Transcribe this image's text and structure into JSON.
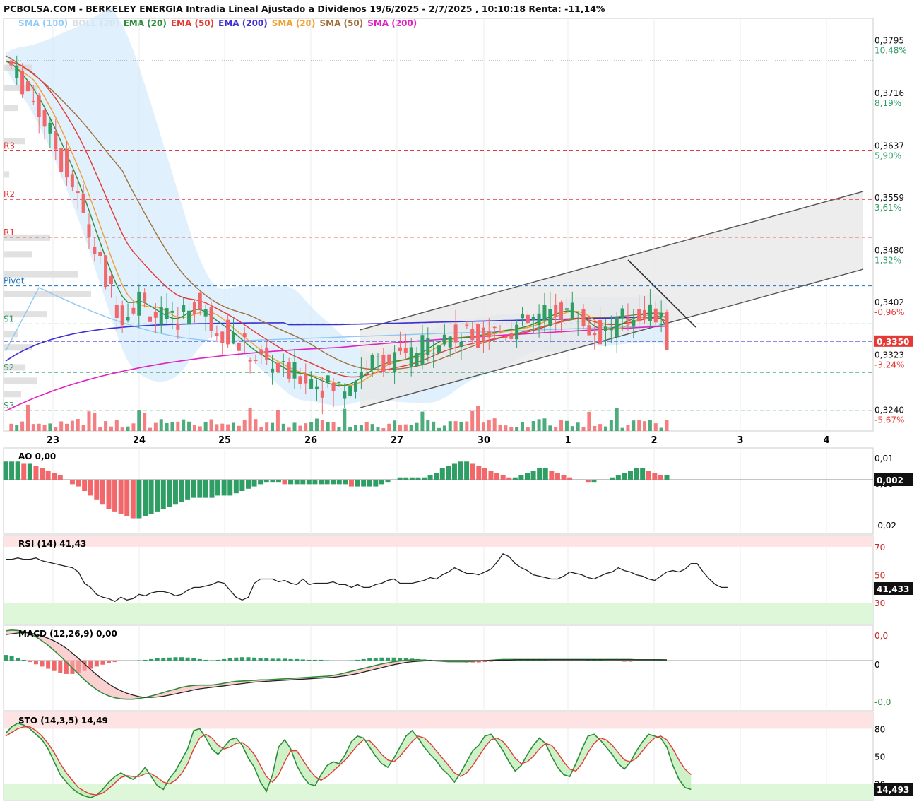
{
  "header": {
    "title": "PCBOLSA.COM - BERKELEY ENERGIA Intradia Lineal Ajustado a Dividenos 19/6/2025 - 2/7/2025 , 10:10:18 Renta: -11,14%"
  },
  "legend": [
    {
      "label": "SMA (100)",
      "color": "#90caf9"
    },
    {
      "label": "BOLL (20)",
      "color": "#dddddd"
    },
    {
      "label": "EMA (20)",
      "color": "#2e8b3a"
    },
    {
      "label": "EMA (50)",
      "color": "#e53935"
    },
    {
      "label": "EMA (200)",
      "color": "#3d2fd6"
    },
    {
      "label": "SMA (20)",
      "color": "#f0a030"
    },
    {
      "label": "SMA (50)",
      "color": "#a0703c"
    },
    {
      "label": "SMA (200)",
      "color": "#e020c0"
    }
  ],
  "colors": {
    "up": "#2e9e64",
    "down": "#f2676a",
    "channel": "#555555"
  },
  "chart_data": [
    {
      "type": "candlestick",
      "panel": "price",
      "x_labels": [
        "23",
        "24",
        "25",
        "26",
        "27",
        "30",
        "1",
        "2",
        "3",
        "4"
      ],
      "y_ticks": [
        {
          "value": 0.3795,
          "label": "0,3795",
          "pct": "10,48%",
          "pct_color": "#2e9e64"
        },
        {
          "value": 0.3716,
          "label": "0,3716",
          "pct": "8,19%",
          "pct_color": "#2e9e64"
        },
        {
          "value": 0.3637,
          "label": "0,3637",
          "pct": "5,90%",
          "pct_color": "#2e9e64"
        },
        {
          "value": 0.3559,
          "label": "0,3559",
          "pct": "3,61%",
          "pct_color": "#2e9e64"
        },
        {
          "value": 0.348,
          "label": "0,3480",
          "pct": "1,32%",
          "pct_color": "#2e9e64"
        },
        {
          "value": 0.3402,
          "label": "0,3402",
          "pct": "-0,96%",
          "pct_color": "#e53935"
        },
        {
          "value": 0.3323,
          "label": "0,3323",
          "pct": "-3,24%",
          "pct_color": "#e53935"
        },
        {
          "value": 0.324,
          "label": "0,3240",
          "pct": "-5,67%",
          "pct_color": "#e53935"
        }
      ],
      "ylim": [
        0.3215,
        0.3835
      ],
      "last_price": {
        "value": 0.335,
        "label": "0,3350"
      },
      "reference_price": 0.3771,
      "pivot_levels": [
        {
          "name": "R3",
          "value": 0.3636,
          "color": "#e53935"
        },
        {
          "name": "R2",
          "value": 0.3563,
          "color": "#e53935"
        },
        {
          "name": "R1",
          "value": 0.3506,
          "color": "#e53935"
        },
        {
          "name": "Pivot",
          "value": 0.3433,
          "color": "#1e73be"
        },
        {
          "name": "S1",
          "value": 0.3376,
          "color": "#2e9e64"
        },
        {
          "name": "S2",
          "value": 0.3303,
          "color": "#2e9e64"
        },
        {
          "name": "S3",
          "value": 0.3246,
          "color": "#2e9e64"
        }
      ],
      "series_close": [
        0.3771,
        0.3762,
        0.3749,
        0.3738,
        0.3726,
        0.3712,
        0.3696,
        0.3679,
        0.3661,
        0.3642,
        0.3621,
        0.3603,
        0.3584,
        0.3562,
        0.3537,
        0.3511,
        0.3486,
        0.3463,
        0.3441,
        0.3421,
        0.3404,
        0.3392,
        0.3395,
        0.3408,
        0.3414,
        0.3404,
        0.3396,
        0.339,
        0.3385,
        0.3381,
        0.3379,
        0.3384,
        0.3393,
        0.3401,
        0.3404,
        0.3398,
        0.3388,
        0.3378,
        0.3371,
        0.3366,
        0.3361,
        0.3354,
        0.3346,
        0.3338,
        0.3331,
        0.3326,
        0.3322,
        0.3318,
        0.3313,
        0.3308,
        0.3303,
        0.33,
        0.3299,
        0.3299,
        0.3298,
        0.3294,
        0.3289,
        0.3285,
        0.3282,
        0.328,
        0.3281,
        0.3284,
        0.3289,
        0.3296,
        0.3303,
        0.331,
        0.3315,
        0.3319,
        0.3321,
        0.3322,
        0.3322,
        0.3323,
        0.3325,
        0.3329,
        0.3334,
        0.334,
        0.3346,
        0.3352,
        0.3356,
        0.3357,
        0.3357,
        0.3356,
        0.3356,
        0.3357,
        0.3358,
        0.336,
        0.3362,
        0.3364,
        0.3366,
        0.3367,
        0.3368,
        0.3369,
        0.3371,
        0.3373,
        0.3376,
        0.338,
        0.3385,
        0.3389,
        0.3393,
        0.3396,
        0.3398,
        0.3398,
        0.3395,
        0.3388,
        0.3378,
        0.3368,
        0.3363,
        0.3362,
        0.3366,
        0.3372,
        0.3377,
        0.3382,
        0.3386,
        0.339,
        0.3394,
        0.3396,
        0.3394,
        0.3388,
        0.3375,
        0.335
      ]
    },
    {
      "type": "bar",
      "panel": "AO",
      "title": "AO  0,00",
      "y_ticks": [
        "0,01",
        "0,00",
        "-0,02"
      ],
      "last": "0,002",
      "ylim": [
        -0.024,
        0.014
      ],
      "values": [
        0.008,
        0.008,
        0.008,
        0.007,
        0.007,
        0.006,
        0.005,
        0.004,
        0.003,
        0.002,
        0.0,
        -0.002,
        -0.003,
        -0.005,
        -0.007,
        -0.009,
        -0.011,
        -0.013,
        -0.014,
        -0.015,
        -0.016,
        -0.017,
        -0.017,
        -0.016,
        -0.015,
        -0.014,
        -0.013,
        -0.012,
        -0.011,
        -0.01,
        -0.009,
        -0.008,
        -0.008,
        -0.008,
        -0.008,
        -0.007,
        -0.007,
        -0.007,
        -0.006,
        -0.005,
        -0.004,
        -0.003,
        -0.002,
        -0.001,
        -0.001,
        -0.001,
        -0.002,
        -0.002,
        -0.002,
        -0.002,
        -0.002,
        -0.002,
        -0.002,
        -0.002,
        -0.002,
        -0.002,
        -0.002,
        -0.003,
        -0.003,
        -0.003,
        -0.003,
        -0.003,
        -0.002,
        -0.001,
        0.0,
        0.001,
        0.001,
        0.001,
        0.001,
        0.001,
        0.002,
        0.003,
        0.005,
        0.006,
        0.007,
        0.008,
        0.008,
        0.007,
        0.006,
        0.005,
        0.004,
        0.003,
        0.002,
        0.001,
        0.001,
        0.002,
        0.003,
        0.004,
        0.005,
        0.005,
        0.004,
        0.003,
        0.002,
        0.001,
        0.0,
        0.0,
        -0.001,
        -0.001,
        0.0,
        0.0,
        0.001,
        0.002,
        0.003,
        0.004,
        0.005,
        0.005,
        0.004,
        0.003,
        0.002,
        0.002
      ]
    },
    {
      "type": "line",
      "panel": "RSI",
      "title": "RSI (14)  41,43",
      "y_ticks": [
        "70",
        "50",
        "30"
      ],
      "last": "41,433",
      "ylim": [
        15,
        78
      ],
      "values": [
        61,
        61,
        62,
        61,
        61,
        62,
        60,
        59,
        58,
        57,
        56,
        55,
        52,
        44,
        41,
        36,
        34,
        33,
        31,
        34,
        32,
        33,
        36,
        35,
        37,
        38,
        38,
        37,
        35,
        36,
        39,
        41,
        41,
        42,
        43,
        45,
        44,
        39,
        34,
        32,
        34,
        44,
        47,
        47,
        47,
        45,
        46,
        44,
        43,
        47,
        43,
        44,
        44,
        44,
        45,
        43,
        43,
        41,
        43,
        41,
        41,
        43,
        44,
        46,
        47,
        44,
        44,
        44,
        45,
        46,
        48,
        47,
        50,
        52,
        55,
        53,
        51,
        51,
        50,
        52,
        54,
        59,
        65,
        63,
        58,
        55,
        53,
        50,
        49,
        48,
        47,
        47,
        49,
        52,
        51,
        50,
        48,
        47,
        49,
        51,
        52,
        55,
        53,
        52,
        50,
        49,
        47,
        46,
        49,
        52,
        53,
        52,
        54,
        58,
        58,
        52,
        47,
        43,
        41,
        41
      ]
    },
    {
      "type": "bar+line",
      "panel": "MACD",
      "title": "MACD (12,26,9)  0,00",
      "y_ticks": [
        "0,0",
        "0",
        "-0,0"
      ],
      "ylim": [
        -0.0135,
        0.0095
      ],
      "hist": [
        0.0015,
        0.0012,
        0.0006,
        0.0002,
        -0.0004,
        -0.001,
        -0.0016,
        -0.0022,
        -0.0028,
        -0.0033,
        -0.0036,
        -0.0036,
        -0.0033,
        -0.0028,
        -0.0022,
        -0.0016,
        -0.0011,
        -0.0007,
        -0.0004,
        -0.0002,
        -0.0001,
        0.0,
        0.0001,
        0.0002,
        0.0004,
        0.0006,
        0.0007,
        0.0008,
        0.0009,
        0.0009,
        0.0008,
        0.0006,
        0.0004,
        0.0002,
        0.0001,
        0.0002,
        0.0004,
        0.0007,
        0.0008,
        0.0009,
        0.0009,
        0.0008,
        0.0007,
        0.0006,
        0.0005,
        0.0005,
        0.0005,
        0.0004,
        0.0004,
        0.0003,
        0.0002,
        0.0002,
        0.0002,
        0.0001,
        0.0,
        -0.0001,
        0.0,
        0.0001,
        0.0002,
        0.0004,
        0.0006,
        0.0007,
        0.0008,
        0.0008,
        0.0008,
        0.0007,
        0.0006,
        0.0005,
        0.0004,
        0.0003,
        0.0002,
        0.0001,
        -0.0001,
        -0.0002,
        -0.0003,
        -0.0004,
        -0.0005,
        -0.0005,
        -0.0005,
        -0.0004,
        -0.0003,
        -0.0002,
        -0.0001,
        0.0,
        0.0001,
        0.0001,
        0.0002,
        0.0002,
        0.0002,
        0.0001,
        0.0,
        -0.0001,
        -0.0002,
        -0.0002,
        -0.0001,
        0.0,
        0.0001,
        0.0001,
        0.0001,
        0.0,
        -0.0001,
        -0.0002,
        -0.0003,
        -0.0003,
        -0.0002,
        -0.0001,
        0.0,
        0.0001,
        0.0001,
        -0.0002
      ],
      "macd": [
        0.008,
        0.0082,
        0.0081,
        0.0078,
        0.0072,
        0.0064,
        0.0053,
        0.0041,
        0.0027,
        0.0012,
        -0.0004,
        -0.002,
        -0.0036,
        -0.0052,
        -0.0066,
        -0.0078,
        -0.0088,
        -0.0095,
        -0.01,
        -0.0103,
        -0.0104,
        -0.0104,
        -0.0102,
        -0.0099,
        -0.0095,
        -0.0091,
        -0.0086,
        -0.0081,
        -0.0077,
        -0.0072,
        -0.0069,
        -0.0067,
        -0.0066,
        -0.0066,
        -0.0066,
        -0.0064,
        -0.0061,
        -0.0058,
        -0.0056,
        -0.0055,
        -0.0054,
        -0.0053,
        -0.0052,
        -0.0052,
        -0.0051,
        -0.005,
        -0.0049,
        -0.0048,
        -0.0047,
        -0.0046,
        -0.0045,
        -0.0044,
        -0.0043,
        -0.0042,
        -0.004,
        -0.0037,
        -0.0033,
        -0.0029,
        -0.0025,
        -0.0021,
        -0.0017,
        -0.0013,
        -0.0009,
        -0.0006,
        -0.0003,
        -0.0001,
        0.0001,
        0.0002,
        0.0002,
        0.0001,
        0.0,
        -0.0001,
        -0.0002,
        -0.0003,
        -0.0003,
        -0.0003,
        -0.0003,
        -0.0002,
        -0.0001,
        0.0,
        0.0001,
        0.0002,
        0.0003,
        0.0003,
        0.0003,
        0.0003,
        0.0003,
        0.0003,
        0.0003,
        0.0003,
        0.0003,
        0.0003,
        0.0003,
        0.0003,
        0.0003,
        0.0003,
        0.0003,
        0.0003,
        0.0003,
        0.0003,
        0.0003,
        0.0003,
        0.0003,
        0.0003,
        0.0002,
        0.0002,
        0.0002,
        0.0002,
        0.0002,
        0.0001
      ],
      "signal": [
        0.007,
        0.0072,
        0.0074,
        0.0075,
        0.0074,
        0.0071,
        0.0066,
        0.006,
        0.0053,
        0.0044,
        0.0033,
        0.002,
        0.0006,
        -0.0009,
        -0.0024,
        -0.0038,
        -0.0051,
        -0.0063,
        -0.0073,
        -0.0081,
        -0.0088,
        -0.0093,
        -0.0097,
        -0.0099,
        -0.0099,
        -0.0098,
        -0.0096,
        -0.0093,
        -0.009,
        -0.0086,
        -0.0083,
        -0.0079,
        -0.0076,
        -0.0074,
        -0.0072,
        -0.007,
        -0.0068,
        -0.0066,
        -0.0064,
        -0.0062,
        -0.006,
        -0.0058,
        -0.0057,
        -0.0056,
        -0.0055,
        -0.0054,
        -0.0053,
        -0.0052,
        -0.0051,
        -0.005,
        -0.0049,
        -0.0048,
        -0.0047,
        -0.0046,
        -0.0045,
        -0.0043,
        -0.0041,
        -0.0038,
        -0.0035,
        -0.0031,
        -0.0027,
        -0.0023,
        -0.0019,
        -0.0015,
        -0.0011,
        -0.0008,
        -0.0005,
        -0.0003,
        -0.0002,
        -0.0001,
        0.0,
        0.0,
        0.0,
        0.0,
        0.0,
        0.0,
        0.0,
        0.0,
        0.0,
        0.0,
        0.0,
        0.0001,
        0.0001,
        0.0001,
        0.0002,
        0.0002,
        0.0002,
        0.0002,
        0.0002,
        0.0002,
        0.0002,
        0.0002,
        0.0002,
        0.0002,
        0.0002,
        0.0002,
        0.0002,
        0.0002,
        0.0002,
        0.0002,
        0.0002,
        0.0002,
        0.0002,
        0.0002,
        0.0002,
        0.0002,
        0.0002,
        0.0002,
        0.0002,
        0.0002
      ]
    },
    {
      "type": "line",
      "panel": "STO",
      "title": "STO (14,3,5)  14,49",
      "y_ticks": [
        "80",
        "50",
        "20"
      ],
      "last": "14,493",
      "ylim": [
        2,
        98
      ],
      "k": [
        75,
        82,
        86,
        84,
        80,
        74,
        68,
        58,
        44,
        30,
        22,
        15,
        10,
        7,
        5,
        8,
        14,
        22,
        28,
        32,
        28,
        25,
        30,
        38,
        28,
        18,
        14,
        26,
        34,
        46,
        58,
        78,
        80,
        70,
        58,
        52,
        60,
        68,
        70,
        62,
        48,
        38,
        22,
        12,
        30,
        60,
        68,
        58,
        40,
        28,
        20,
        18,
        30,
        40,
        44,
        42,
        52,
        66,
        72,
        70,
        60,
        50,
        42,
        38,
        48,
        60,
        72,
        78,
        70,
        60,
        52,
        45,
        36,
        30,
        22,
        32,
        44,
        56,
        62,
        72,
        74,
        66,
        56,
        44,
        34,
        40,
        52,
        62,
        70,
        64,
        50,
        38,
        30,
        28,
        42,
        58,
        72,
        74,
        68,
        60,
        52,
        42,
        36,
        44,
        56,
        66,
        74,
        72,
        70,
        60,
        40,
        25,
        16,
        14
      ],
      "d": [
        72,
        76,
        80,
        82,
        82,
        78,
        72,
        64,
        54,
        42,
        32,
        24,
        16,
        12,
        9,
        8,
        10,
        15,
        21,
        27,
        29,
        28,
        28,
        31,
        31,
        27,
        22,
        20,
        24,
        31,
        42,
        58,
        70,
        74,
        70,
        62,
        58,
        60,
        64,
        65,
        60,
        52,
        40,
        28,
        22,
        30,
        44,
        56,
        56,
        46,
        36,
        28,
        24,
        28,
        34,
        40,
        46,
        54,
        62,
        68,
        67,
        60,
        52,
        46,
        44,
        50,
        58,
        66,
        72,
        70,
        64,
        56,
        48,
        40,
        32,
        28,
        32,
        40,
        50,
        60,
        68,
        70,
        66,
        58,
        48,
        42,
        44,
        50,
        58,
        64,
        62,
        54,
        44,
        36,
        34,
        42,
        54,
        64,
        70,
        68,
        62,
        54,
        46,
        44,
        48,
        56,
        64,
        70,
        72,
        68,
        58,
        46,
        36,
        30
      ]
    }
  ]
}
